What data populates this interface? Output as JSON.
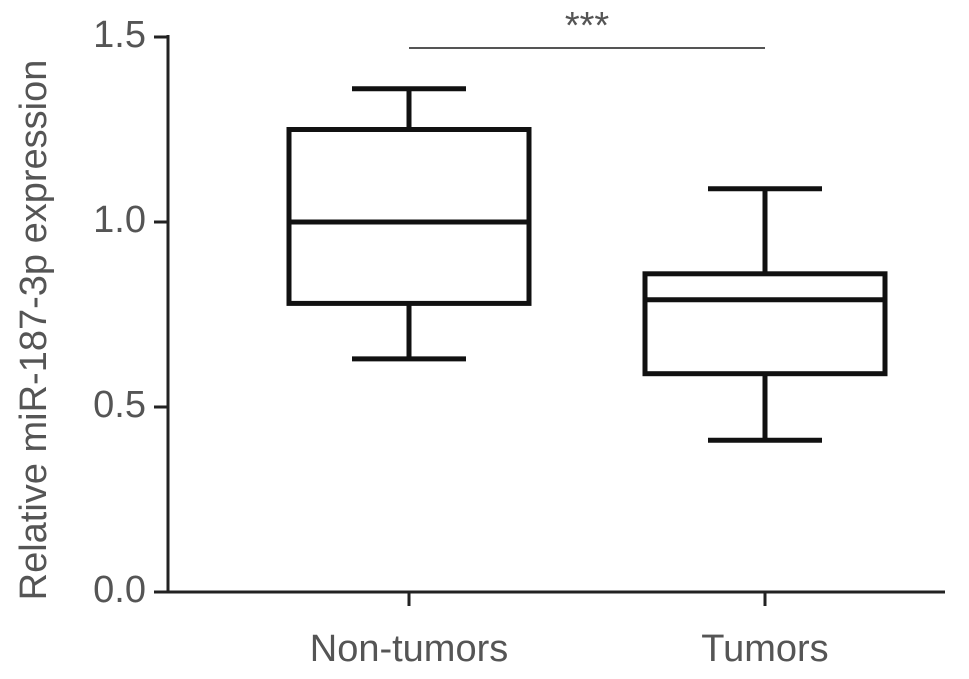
{
  "chart_data": {
    "type": "box",
    "y_label": "Relative miR-187-3p expression",
    "categories": [
      "Non-tumors",
      "Tumors"
    ],
    "values": [
      {
        "min": 0.63,
        "q1": 0.78,
        "median": 1.0,
        "q3": 1.25,
        "max": 1.36
      },
      {
        "min": 0.41,
        "q1": 0.59,
        "median": 0.79,
        "q3": 0.86,
        "max": 1.09
      }
    ],
    "color": "#111111",
    "annotation": "***",
    "ylim": [
      0,
      1.5
    ],
    "yticks": [
      {
        "value": 0,
        "label": "0.0"
      },
      0.5,
      {
        "value": 1,
        "label": "1.0"
      },
      1.5
    ],
    "grid": false
  }
}
